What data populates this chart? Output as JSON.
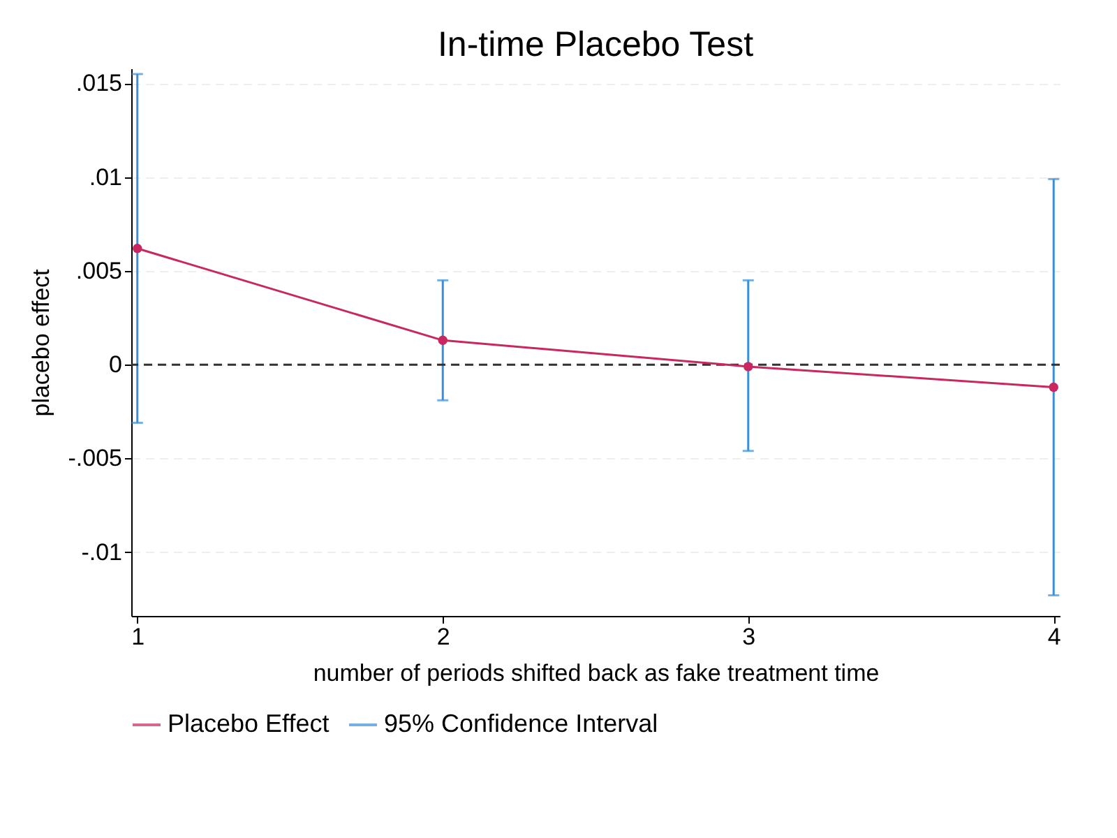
{
  "chart_data": {
    "type": "line",
    "title": "In-time Placebo Test",
    "xlabel": "number of periods shifted back as fake treatment time",
    "ylabel": "placebo effect",
    "x": [
      1,
      2,
      3,
      4
    ],
    "xlim": [
      0.98,
      4.02
    ],
    "xticks": [
      1,
      2,
      3,
      4
    ],
    "ylim": [
      -0.0134,
      0.0158
    ],
    "yticks": [
      {
        "value": -0.01,
        "label": "-.01"
      },
      {
        "value": -0.005,
        "label": "-.005"
      },
      {
        "value": 0,
        "label": "0"
      },
      {
        "value": 0.005,
        "label": ".005"
      },
      {
        "value": 0.01,
        "label": ".01"
      },
      {
        "value": 0.015,
        "label": ".015"
      }
    ],
    "series": [
      {
        "name": "Placebo Effect",
        "color": "#c8285f",
        "values": [
          0.0062,
          0.0013,
          -0.0001,
          -0.0012
        ],
        "errors": [
          [
            -0.0031,
            0.0155
          ],
          [
            -0.0019,
            0.0045
          ],
          [
            -0.0046,
            0.0045
          ],
          [
            -0.0123,
            0.0099
          ]
        ]
      }
    ],
    "annotations": [
      "95% Confidence Interval"
    ],
    "ref_lines": [
      {
        "axis": "y",
        "value": 0,
        "color": "#333333",
        "line_style": "dashed"
      }
    ],
    "grid": "y",
    "marker": "circle",
    "legend": "bottom"
  }
}
